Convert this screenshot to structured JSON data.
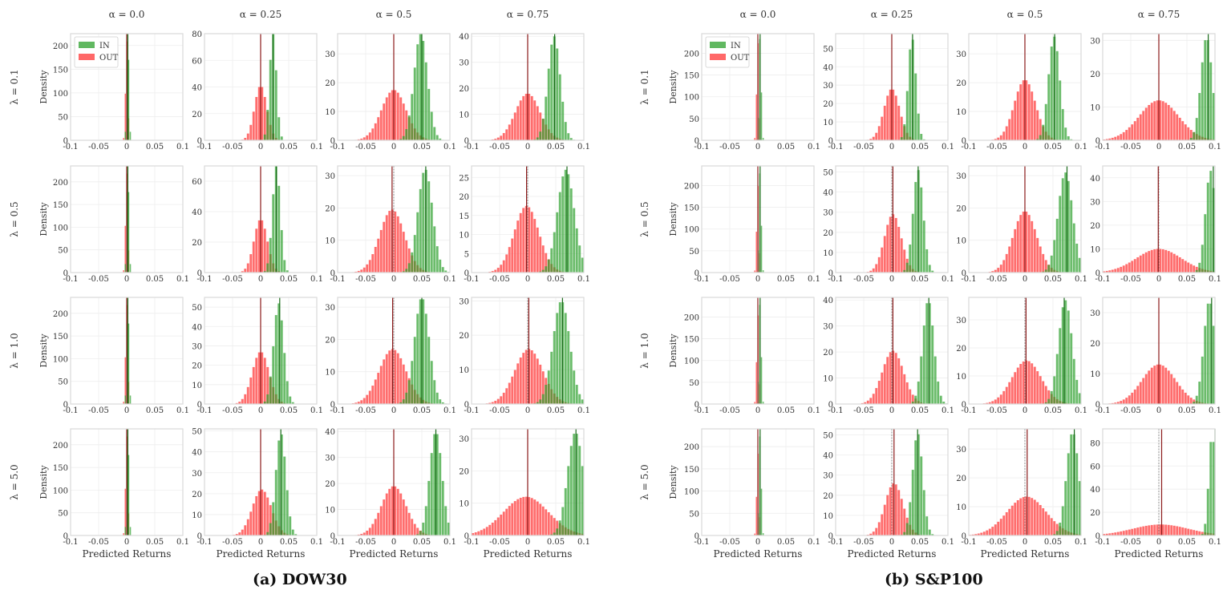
{
  "chart_data": [
    {
      "type": "histogram-grid",
      "caption": "(a) DOW30",
      "col_titles": [
        "α = 0.0",
        "α = 0.25",
        "α = 0.5",
        "α = 0.75"
      ],
      "row_titles": [
        "λ = 0.1",
        "λ = 0.5",
        "λ = 1.0",
        "λ = 5.0"
      ],
      "ylabel": "Density",
      "xlabel": "Predicted Returns",
      "xlim": [
        -0.1,
        0.1
      ],
      "xticks": [
        "-0.1",
        "-0.05",
        "0",
        "0.05",
        "0.1"
      ],
      "legend": {
        "entries": [
          "IN",
          "OUT"
        ],
        "placement": "top-left",
        "panel": "row 1, col 1"
      },
      "panels": [
        [
          {
            "ymax": 225,
            "yticks": [
              0,
              50,
              100,
              150,
              200
            ],
            "in": {
              "mean": 0.002,
              "std": 0.002,
              "peak": 225
            },
            "out": {
              "mean": 0.0,
              "std": 0.002,
              "peak": 215
            },
            "in_line": 0.002,
            "out_line": 0.0
          },
          {
            "ymax": 80,
            "yticks": [
              0,
              20,
              40,
              60,
              80
            ],
            "in": {
              "mean": 0.022,
              "std": 0.006,
              "peak": 80
            },
            "out": {
              "mean": 0.0,
              "std": 0.011,
              "peak": 41
            },
            "in_line": 0.022,
            "out_line": 0.0
          },
          {
            "ymax": 37,
            "yticks": [
              0,
              10,
              20,
              30
            ],
            "in": {
              "mean": 0.048,
              "std": 0.012,
              "peak": 37
            },
            "out": {
              "mean": 0.0,
              "std": 0.022,
              "peak": 17.5
            },
            "in_line": 0.05,
            "out_line": 0.0
          },
          {
            "ymax": 41,
            "yticks": [
              0,
              10,
              20,
              30,
              40
            ],
            "in": {
              "mean": 0.047,
              "std": 0.011,
              "peak": 40
            },
            "out": {
              "mean": 0.0,
              "std": 0.022,
              "peak": 18
            },
            "in_line": 0.048,
            "out_line": 0.0
          }
        ],
        [
          {
            "ymax": 235,
            "yticks": [
              0,
              50,
              100,
              150,
              200
            ],
            "in": {
              "mean": 0.002,
              "std": 0.002,
              "peak": 235
            },
            "out": {
              "mean": 0.0,
              "std": 0.002,
              "peak": 225
            },
            "in_line": 0.002,
            "out_line": 0.0
          },
          {
            "ymax": 70,
            "yticks": [
              0,
              20,
              40,
              60
            ],
            "in": {
              "mean": 0.028,
              "std": 0.007,
              "peak": 70
            },
            "out": {
              "mean": 0.0,
              "std": 0.012,
              "peak": 35
            },
            "in_line": 0.028,
            "out_line": 0.0
          },
          {
            "ymax": 33,
            "yticks": [
              0,
              10,
              20,
              30
            ],
            "in": {
              "mean": 0.056,
              "std": 0.013,
              "peak": 32
            },
            "out": {
              "mean": -0.003,
              "std": 0.022,
              "peak": 19.5
            },
            "in_line": 0.057,
            "out_line": -0.003
          },
          {
            "ymax": 28,
            "yticks": [
              0,
              5,
              10,
              15,
              20,
              25
            ],
            "in": {
              "mean": 0.068,
              "std": 0.015,
              "peak": 27
            },
            "out": {
              "mean": -0.002,
              "std": 0.022,
              "peak": 17.5
            },
            "in_line": 0.07,
            "out_line": -0.002
          }
        ],
        [
          {
            "ymax": 235,
            "yticks": [
              0,
              50,
              100,
              150,
              200
            ],
            "in": {
              "mean": 0.002,
              "std": 0.002,
              "peak": 235
            },
            "out": {
              "mean": 0.0,
              "std": 0.002,
              "peak": 225
            },
            "in_line": 0.002,
            "out_line": 0.0
          },
          {
            "ymax": 55,
            "yticks": [
              0,
              10,
              20,
              30,
              40,
              50
            ],
            "in": {
              "mean": 0.032,
              "std": 0.009,
              "peak": 52
            },
            "out": {
              "mean": 0.0,
              "std": 0.015,
              "peak": 27
            },
            "in_line": 0.034,
            "out_line": 0.0
          },
          {
            "ymax": 33,
            "yticks": [
              0,
              10,
              20,
              30
            ],
            "in": {
              "mean": 0.05,
              "std": 0.013,
              "peak": 33
            },
            "out": {
              "mean": -0.002,
              "std": 0.024,
              "peak": 17
            },
            "in_line": 0.05,
            "out_line": -0.002
          },
          {
            "ymax": 31,
            "yticks": [
              0,
              10,
              20,
              30
            ],
            "in": {
              "mean": 0.06,
              "std": 0.015,
              "peak": 30
            },
            "out": {
              "mean": 0.002,
              "std": 0.025,
              "peak": 16
            },
            "in_line": 0.062,
            "out_line": 0.002
          }
        ],
        [
          {
            "ymax": 235,
            "yticks": [
              0,
              50,
              100,
              150,
              200
            ],
            "in": {
              "mean": 0.002,
              "std": 0.002,
              "peak": 235
            },
            "out": {
              "mean": 0.0,
              "std": 0.002,
              "peak": 225
            },
            "in_line": 0.002,
            "out_line": 0.0
          },
          {
            "ymax": 51,
            "yticks": [
              0,
              10,
              20,
              30,
              40,
              50
            ],
            "in": {
              "mean": 0.036,
              "std": 0.009,
              "peak": 49
            },
            "out": {
              "mean": 0.002,
              "std": 0.017,
              "peak": 22
            },
            "in_line": 0.036,
            "out_line": 0.0
          },
          {
            "ymax": 41,
            "yticks": [
              0,
              10,
              20,
              30,
              40
            ],
            "in": {
              "mean": 0.075,
              "std": 0.011,
              "peak": 40
            },
            "out": {
              "mean": 0.0,
              "std": 0.022,
              "peak": 19
            },
            "in_line": 0.075,
            "out_line": 0.0
          },
          {
            "ymax": 33,
            "yticks": [
              0,
              10,
              20,
              30
            ],
            "in": {
              "mean": 0.085,
              "std": 0.014,
              "peak": 32
            },
            "out": {
              "mean": -0.003,
              "std": 0.04,
              "peak": 12
            },
            "in_line": 0.086,
            "out_line": 0.0
          }
        ]
      ]
    },
    {
      "type": "histogram-grid",
      "caption": "(b) S&P100",
      "col_titles": [
        "α = 0.0",
        "α = 0.25",
        "α = 0.5",
        "α = 0.75"
      ],
      "row_titles": [
        "λ = 0.1",
        "λ = 0.5",
        "λ = 1.0",
        "λ = 5.0"
      ],
      "ylabel": "Density",
      "xlabel": "Predicted Returns",
      "xlim": [
        -0.1,
        0.1
      ],
      "xticks": [
        "-0.1",
        "-0.05",
        "0",
        "0.05",
        "0.1"
      ],
      "legend": {
        "entries": [
          "IN",
          "OUT"
        ],
        "placement": "top-left",
        "panel": "row 1, col 1"
      },
      "panels": [
        [
          {
            "ymax": 245,
            "yticks": [
              0,
              50,
              100,
              150,
              200
            ],
            "in": {
              "mean": 0.004,
              "std": 0.002,
              "peak": 240
            },
            "out": {
              "mean": 0.0,
              "std": 0.002,
              "peak": 230
            },
            "in_line": 0.004,
            "out_line": 0.0
          },
          {
            "ymax": 58,
            "yticks": [
              0,
              10,
              20,
              30,
              40,
              50
            ],
            "in": {
              "mean": 0.036,
              "std": 0.007,
              "peak": 56
            },
            "out": {
              "mean": 0.0,
              "std": 0.014,
              "peak": 28
            },
            "in_line": 0.037,
            "out_line": 0.0
          },
          {
            "ymax": 37,
            "yticks": [
              0,
              10,
              20,
              30
            ],
            "in": {
              "mean": 0.052,
              "std": 0.01,
              "peak": 36
            },
            "out": {
              "mean": 0.0,
              "std": 0.019,
              "peak": 21
            },
            "in_line": 0.053,
            "out_line": 0.0
          },
          {
            "ymax": 32,
            "yticks": [
              0,
              10,
              20,
              30
            ],
            "in": {
              "mean": 0.085,
              "std": 0.01,
              "peak": 31
            },
            "out": {
              "mean": 0.0,
              "std": 0.035,
              "peak": 12
            },
            "in_line": 0.088,
            "out_line": 0.0
          }
        ],
        [
          {
            "ymax": 245,
            "yticks": [
              0,
              50,
              100,
              150,
              200
            ],
            "in": {
              "mean": 0.004,
              "std": 0.002,
              "peak": 235
            },
            "out": {
              "mean": 0.0,
              "std": 0.002,
              "peak": 205
            },
            "in_line": 0.004,
            "out_line": 0.0
          },
          {
            "ymax": 53,
            "yticks": [
              0,
              10,
              20,
              30,
              40,
              50
            ],
            "in": {
              "mean": 0.047,
              "std": 0.009,
              "peak": 51
            },
            "out": {
              "mean": 0.002,
              "std": 0.015,
              "peak": 29
            },
            "in_line": 0.047,
            "out_line": 0.002
          },
          {
            "ymax": 33,
            "yticks": [
              0,
              10,
              20,
              30
            ],
            "in": {
              "mean": 0.072,
              "std": 0.013,
              "peak": 31
            },
            "out": {
              "mean": 0.0,
              "std": 0.021,
              "peak": 19
            },
            "in_line": 0.075,
            "out_line": 0.0
          },
          {
            "ymax": 45,
            "yticks": [
              0,
              10,
              20,
              30,
              40
            ],
            "in": {
              "mean": 0.092,
              "std": 0.009,
              "peak": 43
            },
            "out": {
              "mean": 0.0,
              "std": 0.04,
              "peak": 10
            },
            "in_line": 0.097,
            "out_line": -0.001
          }
        ],
        [
          {
            "ymax": 245,
            "yticks": [
              0,
              50,
              100,
              150,
              200
            ],
            "in": {
              "mean": 0.004,
              "std": 0.002,
              "peak": 235
            },
            "out": {
              "mean": 0.0,
              "std": 0.002,
              "peak": 210
            },
            "in_line": 0.004,
            "out_line": 0.0
          },
          {
            "ymax": 41,
            "yticks": [
              0,
              10,
              20,
              30,
              40
            ],
            "in": {
              "mean": 0.065,
              "std": 0.01,
              "peak": 40
            },
            "out": {
              "mean": 0.002,
              "std": 0.019,
              "peak": 20.5
            },
            "in_line": 0.066,
            "out_line": 0.002
          },
          {
            "ymax": 38,
            "yticks": [
              0,
              10,
              20,
              30
            ],
            "in": {
              "mean": 0.072,
              "std": 0.012,
              "peak": 37
            },
            "out": {
              "mean": 0.003,
              "std": 0.026,
              "peak": 15.5
            },
            "in_line": 0.07,
            "out_line": 0.002
          },
          {
            "ymax": 35,
            "yticks": [
              0,
              10,
              20,
              30
            ],
            "in": {
              "mean": 0.09,
              "std": 0.01,
              "peak": 34
            },
            "out": {
              "mean": 0.0,
              "std": 0.03,
              "peak": 13
            },
            "in_line": 0.094,
            "out_line": 0.0
          }
        ],
        [
          {
            "ymax": 240,
            "yticks": [
              0,
              50,
              100,
              150,
              200
            ],
            "in": {
              "mean": 0.004,
              "std": 0.002,
              "peak": 230
            },
            "out": {
              "mean": 0.0,
              "std": 0.002,
              "peak": 190
            },
            "in_line": 0.004,
            "out_line": 0.0
          },
          {
            "ymax": 53,
            "yticks": [
              0,
              10,
              20,
              30,
              40,
              50
            ],
            "in": {
              "mean": 0.046,
              "std": 0.009,
              "peak": 51
            },
            "out": {
              "mean": 0.004,
              "std": 0.016,
              "peak": 26
            },
            "in_line": 0.046,
            "out_line": 0.004
          },
          {
            "ymax": 37,
            "yticks": [
              0,
              10,
              20,
              30
            ],
            "in": {
              "mean": 0.085,
              "std": 0.011,
              "peak": 36
            },
            "out": {
              "mean": 0.003,
              "std": 0.035,
              "peak": 13.5
            },
            "in_line": 0.088,
            "out_line": 0.004
          },
          {
            "ymax": 92,
            "yticks": [
              0,
              20,
              40,
              60,
              80
            ],
            "in": {
              "mean": 0.095,
              "std": 0.006,
              "peak": 88
            },
            "out": {
              "mean": 0.003,
              "std": 0.05,
              "peak": 9.5
            },
            "in_line": 0.1,
            "out_line": 0.005
          }
        ]
      ]
    }
  ],
  "colors": {
    "in_fill": "#2ca02c",
    "out_fill": "#ff4d4d",
    "in_line": "#1a6b1a",
    "out_line": "#8b1a1a",
    "axis_frame": "#d9d9d9",
    "grid": "#eeeeee",
    "text": "#333333"
  }
}
